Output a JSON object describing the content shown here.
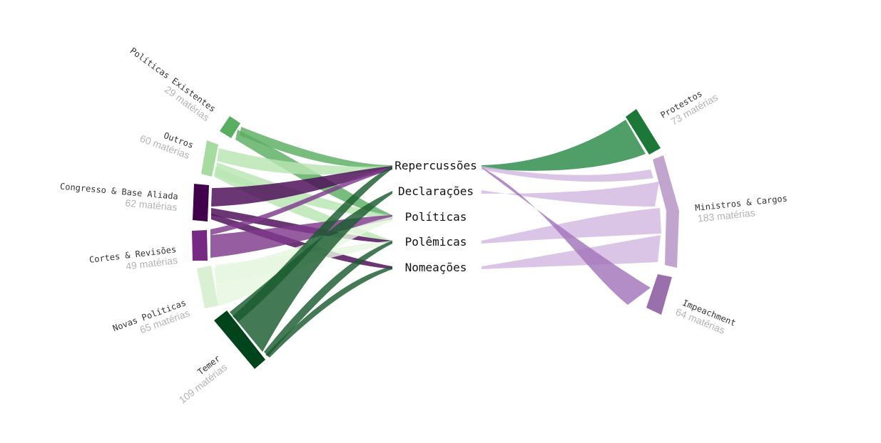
{
  "diagram": {
    "center_labels": [
      "Repercussões",
      "Declarações",
      "Políticas",
      "Polêmicas",
      "Nomeações"
    ],
    "left_groups": [
      {
        "id": "politicas-existentes",
        "name": "Políticas Existentes",
        "count": "29 matérias",
        "color": "#5aae61"
      },
      {
        "id": "outros",
        "name": "Outros",
        "count": "60 matérias",
        "color": "#a6dba0"
      },
      {
        "id": "congresso",
        "name": "Congresso & Base Aliada",
        "count": "62 matérias",
        "color": "#40004b"
      },
      {
        "id": "cortes",
        "name": "Cortes & Revisões",
        "count": "49 matérias",
        "color": "#762a83"
      },
      {
        "id": "novas",
        "name": "Novas Políticas",
        "count": "65 matérias",
        "color": "#d9f0d3"
      },
      {
        "id": "temer",
        "name": "Temer",
        "count": "109 matérias",
        "color": "#00441b"
      }
    ],
    "right_groups": [
      {
        "id": "protestos",
        "name": "Protestos",
        "count": "73 matérias",
        "color": "#1b7837"
      },
      {
        "id": "ministros",
        "name": "Ministros & Cargos",
        "count": "183 matérias",
        "color": "#c2a5cf"
      },
      {
        "id": "impeachment",
        "name": "Impeachment",
        "count": "64 matérias",
        "color": "#9970ab"
      }
    ],
    "ribbon_colors": {
      "politicas-existentes": "#5aae61",
      "outros": "#b8e5b2",
      "congresso": "#4a0a55",
      "cortes": "#7f3a8c",
      "novas": "#e6f7e0",
      "temer": "#1a5c2e",
      "protestos": "#2a8a48",
      "ministros": "#d3b8e0",
      "impeachment": "#a274b8"
    }
  }
}
